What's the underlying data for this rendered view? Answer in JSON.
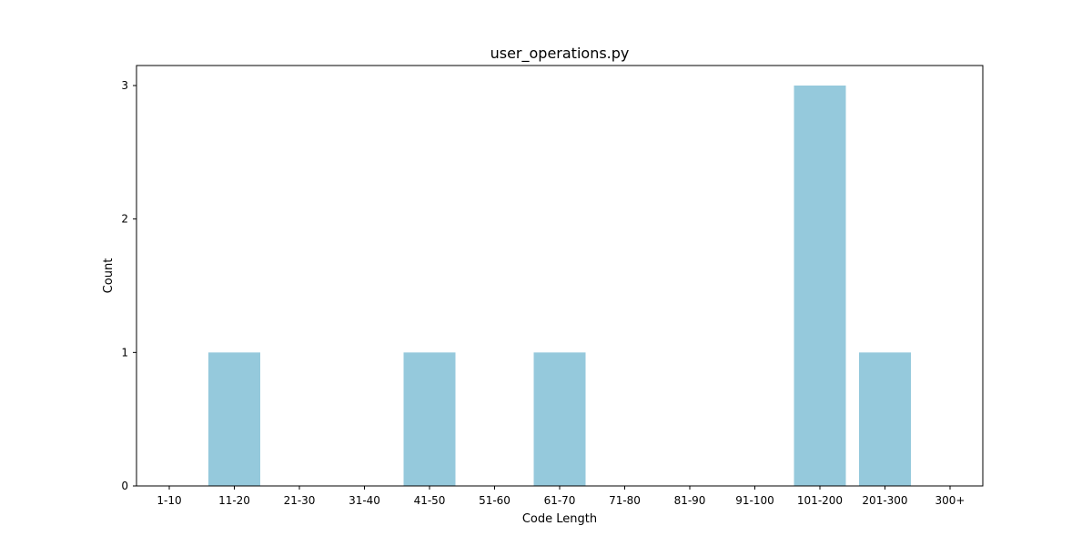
{
  "chart_data": {
    "type": "bar",
    "title": "user_operations.py",
    "xlabel": "Code Length",
    "ylabel": "Count",
    "categories": [
      "1-10",
      "11-20",
      "21-30",
      "31-40",
      "41-50",
      "51-60",
      "61-70",
      "71-80",
      "81-90",
      "91-100",
      "101-200",
      "201-300",
      "300+"
    ],
    "values": [
      0,
      1,
      0,
      0,
      1,
      0,
      1,
      0,
      0,
      0,
      3,
      1,
      0
    ],
    "yticks": [
      0,
      1,
      2,
      3
    ],
    "ylim": [
      0,
      3.15
    ],
    "grid": false,
    "bar_color": "#95c9dc",
    "axis_color": "#000000"
  }
}
